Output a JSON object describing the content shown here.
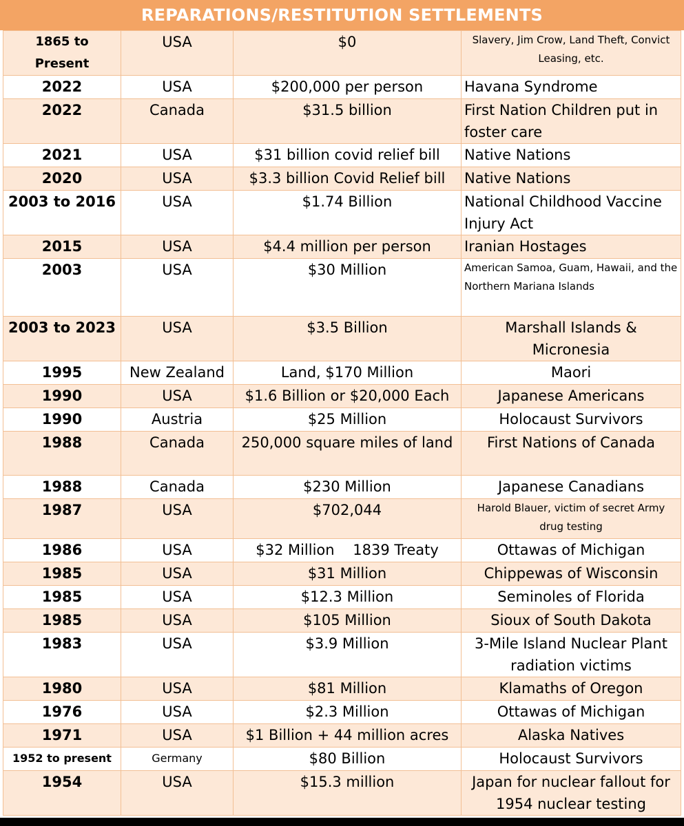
{
  "title": "REPARATIONS/RESTITUTION SETTLEMENTS",
  "rows": [
    {
      "year": "1865 to Present",
      "country": "USA",
      "amount": "$0",
      "recipient": "Slavery, Jim Crow, Land Theft, Convict Leasing, etc."
    },
    {
      "year": "2022",
      "country": "USA",
      "amount": "$200,000 per person",
      "recipient": "Havana Syndrome"
    },
    {
      "year": "2022",
      "country": "Canada",
      "amount": "$31.5 billion",
      "recipient": "First Nation Children put in foster care"
    },
    {
      "year": "2021",
      "country": "USA",
      "amount": "$31 billion covid relief bill",
      "recipient": "Native Nations"
    },
    {
      "year": "2020",
      "country": "USA",
      "amount": "$3.3 billion Covid Relief bill",
      "recipient": "Native Nations"
    },
    {
      "year": "2003 to 2016",
      "country": "USA",
      "amount": "$1.74 Billion",
      "recipient": "National Childhood Vaccine Injury Act"
    },
    {
      "year": "2015",
      "country": "USA",
      "amount": "$4.4 million per person",
      "recipient": "Iranian Hostages"
    },
    {
      "year": "2003",
      "country": "USA",
      "amount": "$30 Million",
      "recipient": "American Samoa, Guam, Hawaii, and the Northern Mariana Islands"
    },
    {
      "year": "2003 to 2023",
      "country": "USA",
      "amount": "$3.5 Billion",
      "recipient": "Marshall Islands & Micronesia"
    },
    {
      "year": "1995",
      "country": "New Zealand",
      "amount": "Land, $170 Million",
      "recipient": "Maori"
    },
    {
      "year": "1990",
      "country": "USA",
      "amount": "$1.6 Billion or $20,000 Each",
      "recipient": "Japanese Americans"
    },
    {
      "year": "1990",
      "country": "Austria",
      "amount": "$25 Million",
      "recipient": "Holocaust Survivors"
    },
    {
      "year": "1988",
      "country": "Canada",
      "amount": "250,000 square miles of land",
      "recipient": "First Nations of Canada"
    },
    {
      "year": "1988",
      "country": "Canada",
      "amount": "$230 Million",
      "recipient": "Japanese Canadians"
    },
    {
      "year": "1987",
      "country": "USA",
      "amount": "$702,044",
      "recipient": "Harold Blauer, victim of secret Army drug testing"
    },
    {
      "year": "1986",
      "country": "USA",
      "amount": "$32 Million    1839 Treaty",
      "recipient": "Ottawas of Michigan"
    },
    {
      "year": "1985",
      "country": "USA",
      "amount": "$31 Million",
      "recipient": "Chippewas of Wisconsin"
    },
    {
      "year": "1985",
      "country": "USA",
      "amount": "$12.3 Million",
      "recipient": "Seminoles of Florida"
    },
    {
      "year": "1985",
      "country": "USA",
      "amount": "$105 Million",
      "recipient": "Sioux of South Dakota"
    },
    {
      "year": "1983",
      "country": "USA",
      "amount": "$3.9 Million",
      "recipient": "3-Mile Island Nuclear Plant radiation victims"
    },
    {
      "year": "1980",
      "country": "USA",
      "amount": "$81 Million",
      "recipient": "Klamaths of Oregon"
    },
    {
      "year": "1976",
      "country": "USA",
      "amount": "$2.3 Million",
      "recipient": "Ottawas of Michigan"
    },
    {
      "year": "1971",
      "country": "USA",
      "amount": "$1 Billion + 44 million acres",
      "recipient": "Alaska Natives"
    },
    {
      "year": "1952 to present",
      "country": "Germany",
      "amount": "$80 Billion",
      "recipient": "Holocaust Survivors"
    },
    {
      "year": "1954",
      "country": "USA",
      "amount": "$15.3 million",
      "recipient": "Japan for nuclear fallout for 1954 nuclear testing"
    }
  ]
}
